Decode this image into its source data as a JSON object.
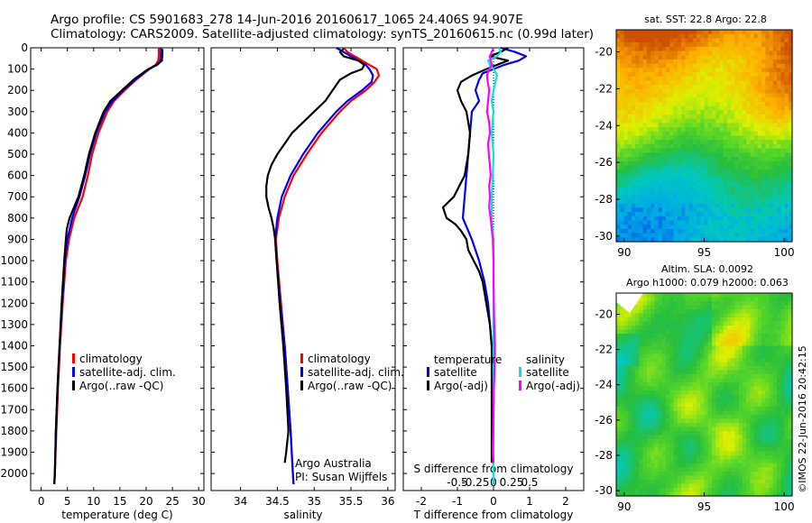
{
  "title_line1": "Argo profile: CS 5901683_278 14-Jun-2016 20160617_1065 24.406S 94.907E",
  "title_line2": "Climatology: CARS2009. Satellite-adjusted climatology: synTS_20160615.nc (0.99d later)",
  "credit": "Argo Australia",
  "pi": "PI: Susan Wijffels",
  "imos_stamp": "©IMOS 22-Jun-2016 20:42:15",
  "colors": {
    "climatology": "#ff0000",
    "satellite": "#0000ff",
    "argo": "#000000",
    "sal_satellite": "#00e5e5",
    "sal_argo": "#ff00ff"
  },
  "chart_data": [
    {
      "type": "line",
      "name": "temperature",
      "xlabel": "temperature (deg C)",
      "xlim": [
        -2,
        31
      ],
      "xticks": [
        0,
        5,
        10,
        15,
        20,
        25,
        30
      ],
      "ylim": [
        0,
        2080
      ],
      "yticks": [
        0,
        100,
        200,
        300,
        400,
        500,
        600,
        700,
        800,
        900,
        1000,
        1100,
        1200,
        1300,
        1400,
        1500,
        1600,
        1700,
        1800,
        1900,
        2000
      ],
      "y_reversed": true,
      "legend": [
        "climatology",
        "satellite-adj. clim.",
        "Argo(..raw -QC)"
      ],
      "series": [
        {
          "name": "climatology",
          "color": "climatology",
          "depth": [
            0,
            30,
            60,
            80,
            100,
            150,
            200,
            250,
            300,
            400,
            500,
            600,
            700,
            800,
            900,
            1000,
            1200,
            1400,
            1600,
            1800,
            2000,
            2050
          ],
          "values": [
            22.4,
            22.4,
            22.3,
            21.8,
            20.6,
            18.1,
            15.9,
            13.9,
            12.6,
            10.9,
            9.7,
            8.9,
            7.9,
            6.3,
            5.3,
            4.7,
            4.1,
            3.6,
            3.2,
            2.9,
            2.6,
            2.5
          ]
        },
        {
          "name": "satellite-adj. clim.",
          "color": "satellite",
          "depth": [
            0,
            30,
            60,
            80,
            100,
            150,
            200,
            250,
            300,
            400,
            500,
            600,
            700,
            800,
            900,
            1000,
            1200,
            1400,
            1600,
            1800,
            2000,
            2050
          ],
          "values": [
            22.8,
            22.8,
            22.7,
            22.0,
            20.6,
            17.9,
            15.6,
            13.6,
            12.2,
            10.5,
            9.3,
            8.4,
            7.3,
            5.9,
            5.0,
            4.5,
            4.0,
            3.5,
            3.1,
            2.8,
            2.6,
            2.5
          ]
        },
        {
          "name": "Argo(..raw -QC)",
          "color": "argo",
          "depth": [
            5,
            30,
            60,
            80,
            100,
            150,
            200,
            250,
            300,
            400,
            500,
            600,
            700,
            800,
            850,
            900,
            1000,
            1200,
            1400,
            1600,
            1800,
            2000,
            2050
          ],
          "values": [
            23.1,
            23.1,
            23.0,
            22.1,
            20.4,
            17.6,
            15.4,
            13.2,
            11.9,
            10.3,
            9.1,
            8.2,
            7.1,
            5.4,
            4.9,
            4.7,
            4.4,
            3.9,
            3.5,
            3.1,
            2.8,
            2.6,
            2.5
          ]
        }
      ]
    },
    {
      "type": "line",
      "name": "salinity",
      "xlabel": "salinity",
      "xlim": [
        33.6,
        36.1
      ],
      "xticks": [
        34,
        34.5,
        35,
        35.5,
        36
      ],
      "ylim": [
        0,
        2080
      ],
      "y_reversed": true,
      "legend": [
        "climatology",
        "satellite-adj. clim.",
        "Argo(..raw -QC)"
      ],
      "series": [
        {
          "name": "climatology",
          "color": "climatology",
          "depth": [
            0,
            20,
            50,
            80,
            100,
            130,
            160,
            200,
            250,
            300,
            400,
            500,
            600,
            700,
            800,
            900,
            1000,
            1200,
            1400,
            1600,
            1800,
            2000,
            2050
          ],
          "values": [
            35.4,
            35.45,
            35.6,
            35.75,
            35.85,
            35.88,
            35.82,
            35.7,
            35.5,
            35.35,
            35.1,
            34.9,
            34.72,
            34.6,
            34.52,
            34.48,
            34.5,
            34.55,
            34.6,
            34.64,
            34.68,
            34.71,
            34.72
          ]
        },
        {
          "name": "satellite-adj. clim.",
          "color": "satellite",
          "depth": [
            0,
            20,
            50,
            80,
            100,
            130,
            160,
            200,
            250,
            300,
            400,
            500,
            600,
            700,
            800,
            900,
            1000,
            1200,
            1400,
            1600,
            1800,
            2000,
            2050
          ],
          "values": [
            35.3,
            35.4,
            35.55,
            35.7,
            35.75,
            35.8,
            35.78,
            35.65,
            35.45,
            35.3,
            35.05,
            34.85,
            34.68,
            34.56,
            34.5,
            34.47,
            34.49,
            34.54,
            34.6,
            34.64,
            34.68,
            34.71,
            34.72
          ]
        },
        {
          "name": "Argo(..raw -QC)",
          "color": "argo",
          "depth": [
            5,
            20,
            40,
            60,
            80,
            100,
            120,
            150,
            200,
            250,
            300,
            350,
            400,
            450,
            500,
            550,
            600,
            650,
            700,
            750,
            800,
            850,
            900,
            1000,
            1200,
            1400,
            1600,
            1800,
            1900,
            1950
          ],
          "values": [
            35.4,
            35.35,
            35.4,
            35.6,
            35.68,
            35.65,
            35.5,
            35.35,
            35.25,
            35.15,
            35.0,
            34.85,
            34.7,
            34.6,
            34.5,
            34.42,
            34.37,
            34.35,
            34.35,
            34.38,
            34.42,
            34.45,
            34.47,
            34.49,
            34.53,
            34.58,
            34.62,
            34.65,
            34.62,
            34.6
          ]
        }
      ]
    },
    {
      "type": "line",
      "name": "difference from climatology",
      "xlabel": "T difference from climatology",
      "xlabel_top": "S difference from climatology",
      "xlim": [
        -2.5,
        2.5
      ],
      "xticks": [
        -2,
        -1,
        0,
        1,
        2
      ],
      "xticks_top_labels": [
        "-0.5",
        "-0.25",
        "0",
        "0.25",
        "0.5"
      ],
      "ylim": [
        0,
        2080
      ],
      "y_reversed": true,
      "legend_titles": [
        "temperature",
        "salinity"
      ],
      "legend": [
        "satellite",
        "Argo(-adj)",
        "satellite",
        "Argo(-adj)"
      ],
      "series": [
        {
          "name": "satellite",
          "group": "temperature",
          "color": "satellite",
          "depth": [
            0,
            20,
            40,
            60,
            80,
            100,
            120,
            150,
            200,
            250,
            300,
            400,
            500,
            600,
            700,
            800,
            900,
            1000,
            1100,
            1200,
            1300,
            1400,
            1500,
            1600,
            1800,
            2000,
            2050
          ],
          "values": [
            0.2,
            0.6,
            0.9,
            0.7,
            0.3,
            0.0,
            -0.3,
            -0.4,
            -0.5,
            -0.4,
            -0.6,
            -0.65,
            -0.7,
            -0.75,
            -0.8,
            -0.85,
            -0.6,
            -0.4,
            -0.25,
            -0.15,
            -0.1,
            -0.05,
            -0.03,
            -0.02,
            -0.01,
            0,
            0
          ]
        },
        {
          "name": "Argo(-adj)",
          "group": "temperature",
          "color": "argo",
          "depth": [
            0,
            20,
            40,
            60,
            80,
            100,
            130,
            160,
            200,
            250,
            300,
            400,
            500,
            600,
            650,
            700,
            750,
            800,
            830,
            860,
            900,
            950,
            1000,
            1050,
            1100,
            1200,
            1300,
            1400,
            1500,
            1600,
            1800,
            1950
          ],
          "values": [
            0.4,
            0.2,
            -0.1,
            0.4,
            0.1,
            -0.2,
            -0.6,
            -0.9,
            -1.0,
            -0.9,
            -0.75,
            -0.65,
            -0.7,
            -0.8,
            -0.95,
            -1.1,
            -1.4,
            -1.3,
            -1.05,
            -0.9,
            -0.75,
            -0.7,
            -0.55,
            -0.4,
            -0.3,
            -0.2,
            -0.1,
            -0.05,
            -0.05,
            -0.05,
            -0.05,
            -0.05
          ]
        },
        {
          "name": "satellite",
          "group": "salinity",
          "color": "sal_satellite",
          "depth": [
            0,
            20,
            40,
            60,
            80,
            100,
            130,
            160,
            200,
            250,
            300,
            400,
            500,
            600,
            700,
            800,
            900,
            1000,
            1200,
            1400,
            1600,
            1800,
            2000,
            2050
          ],
          "values": [
            0.15,
            0.2,
            0.1,
            -0.15,
            -0.1,
            0.0,
            0.1,
            0.05,
            0.0,
            -0.05,
            0.0,
            -0.05,
            0.0,
            -0.02,
            -0.05,
            -0.05,
            0.0,
            0.0,
            0.0,
            0.0,
            0.0,
            0.0,
            0.0,
            0.0
          ]
        },
        {
          "name": "Argo(-adj)",
          "group": "salinity",
          "color": "sal_argo",
          "depth": [
            0,
            20,
            40,
            60,
            80,
            100,
            130,
            160,
            200,
            250,
            300,
            350,
            400,
            450,
            500,
            550,
            600,
            650,
            700,
            750,
            800,
            900,
            1000,
            1100,
            1200,
            1300,
            1400,
            1500,
            1600,
            1700,
            1800,
            1900,
            1950
          ],
          "values": [
            0.0,
            -0.05,
            -0.1,
            -0.08,
            -0.05,
            -0.12,
            -0.18,
            -0.16,
            -0.12,
            -0.15,
            -0.18,
            -0.12,
            -0.1,
            -0.15,
            -0.13,
            -0.1,
            -0.08,
            -0.12,
            -0.1,
            -0.12,
            -0.08,
            -0.02,
            0.0,
            0.0,
            0.01,
            0.02,
            0.04,
            0.03,
            0.01,
            0.0,
            -0.01,
            -0.02,
            0.0
          ]
        }
      ]
    },
    {
      "type": "heatmap",
      "name": "sst map",
      "title": "sat. SST: 22.8 Argo: 22.8",
      "xlim": [
        89.5,
        100.5
      ],
      "ylim": [
        -30.3,
        -18.8
      ],
      "xticks": [
        90,
        95,
        100
      ],
      "yticks": [
        -20,
        -22,
        -24,
        -26,
        -28,
        -30
      ]
    },
    {
      "type": "heatmap",
      "name": "sla map",
      "title": "Altim. SLA: 0.0092",
      "subtitle": "Argo h1000: 0.079 h2000: 0.063",
      "xlim": [
        89.5,
        100.5
      ],
      "ylim": [
        -30.3,
        -18.8
      ],
      "xticks": [
        90,
        95,
        100
      ],
      "yticks": [
        -20,
        -22,
        -24,
        -26,
        -28,
        -30
      ]
    }
  ]
}
